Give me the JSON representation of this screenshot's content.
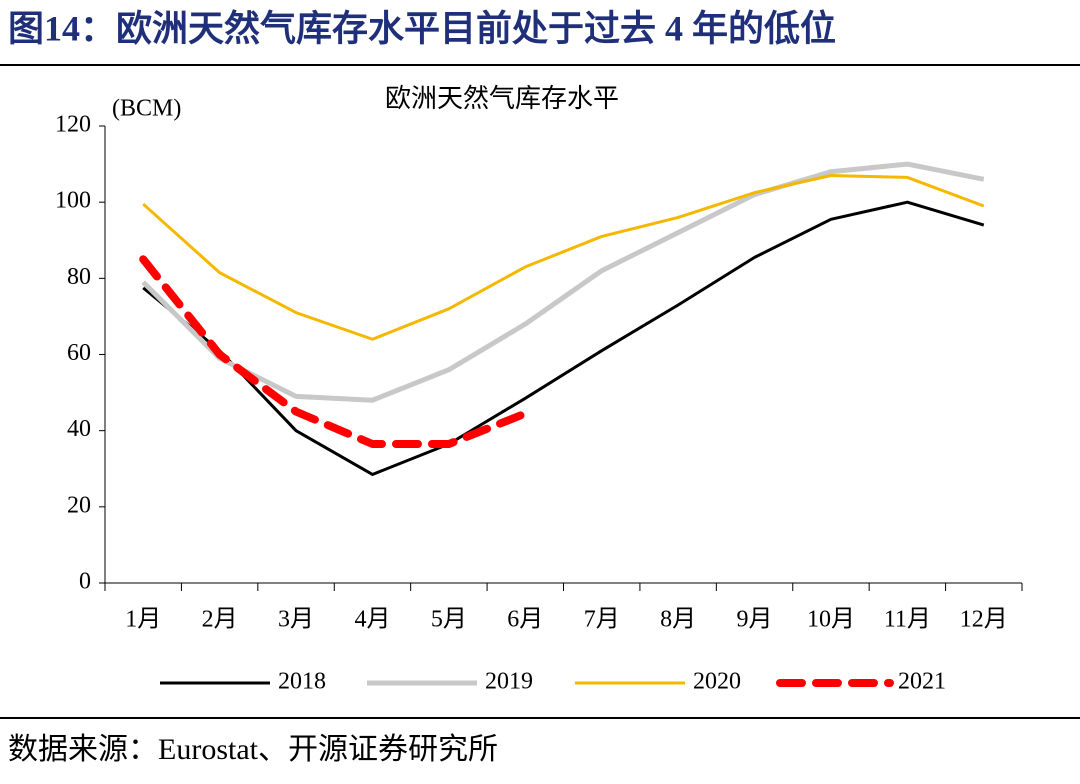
{
  "chart_data": {
    "type": "line",
    "figure_title": "图14：欧洲天然气库存水平目前处于过去 4 年的低位",
    "title": "欧洲天然气库存水平",
    "y_label": "(BCM)",
    "source": "数据来源：Eurostat、开源证券研究所",
    "categories": [
      "1月",
      "2月",
      "3月",
      "4月",
      "5月",
      "6月",
      "7月",
      "8月",
      "9月",
      "10月",
      "11月",
      "12月"
    ],
    "series": [
      {
        "name": "2018",
        "color": "#000000",
        "dashed": false,
        "values": [
          77.5,
          61,
          40,
          28.5,
          36.5,
          48.5,
          61,
          73,
          85.5,
          95.5,
          100,
          94
        ]
      },
      {
        "name": "2019",
        "color": "#c8c8c8",
        "dashed": false,
        "values": [
          79,
          59,
          49,
          48,
          56,
          68,
          82,
          92,
          102,
          108,
          110,
          106
        ]
      },
      {
        "name": "2020",
        "color": "#f5b800",
        "dashed": false,
        "values": [
          99.5,
          81.5,
          71,
          64,
          72,
          83,
          91,
          96,
          102.5,
          107,
          106.5,
          99
        ]
      },
      {
        "name": "2021",
        "color": "#ff0000",
        "dashed": true,
        "values": [
          85,
          60,
          45,
          36.5,
          36.5,
          44.5,
          null,
          null,
          null,
          null,
          null,
          null
        ]
      }
    ],
    "ylim": [
      0,
      120
    ],
    "yticks": [
      0,
      20,
      40,
      60,
      80,
      100,
      120
    ],
    "grid": false,
    "legend": "bottom"
  }
}
